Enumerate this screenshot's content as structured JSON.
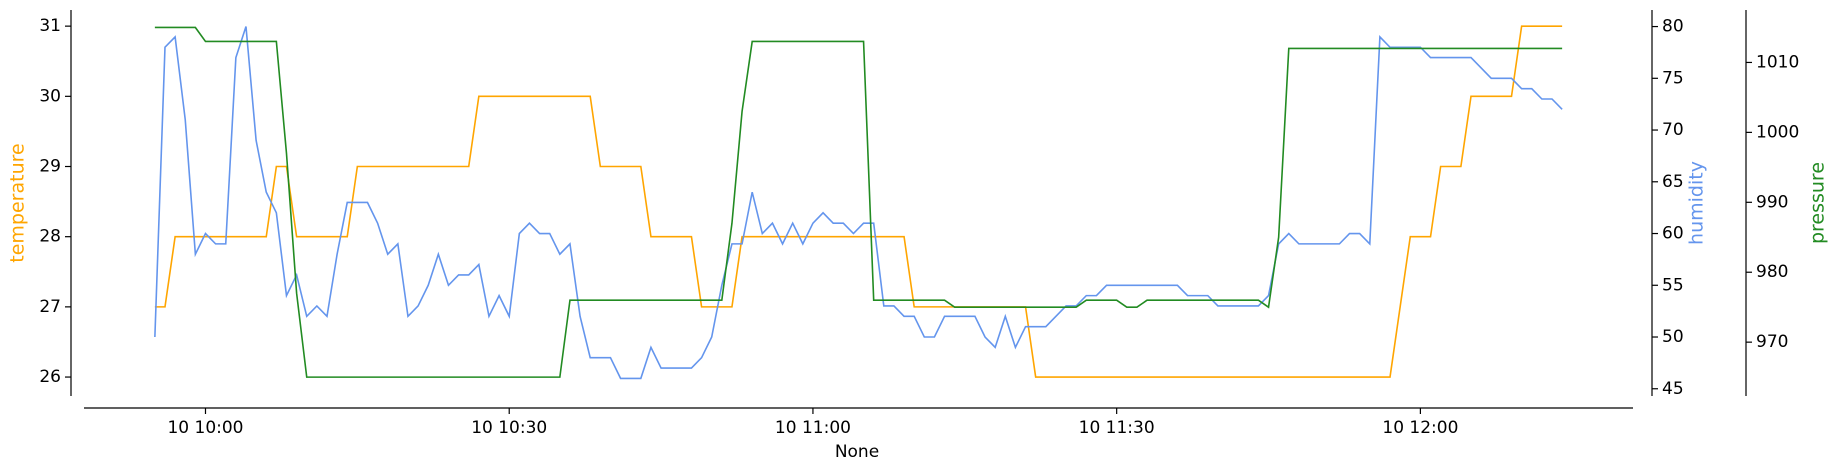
{
  "chart_data": {
    "type": "line",
    "x": [
      "10 09:55",
      "10 09:56",
      "10 09:57",
      "10 09:58",
      "10 09:59",
      "10 10:00",
      "10 10:01",
      "10 10:02",
      "10 10:03",
      "10 10:04",
      "10 10:05",
      "10 10:06",
      "10 10:07",
      "10 10:08",
      "10 10:09",
      "10 10:10",
      "10 10:11",
      "10 10:12",
      "10 10:13",
      "10 10:14",
      "10 10:15",
      "10 10:16",
      "10 10:17",
      "10 10:18",
      "10 10:19",
      "10 10:20",
      "10 10:21",
      "10 10:22",
      "10 10:23",
      "10 10:24",
      "10 10:25",
      "10 10:26",
      "10 10:27",
      "10 10:28",
      "10 10:29",
      "10 10:30",
      "10 10:31",
      "10 10:32",
      "10 10:33",
      "10 10:34",
      "10 10:35",
      "10 10:36",
      "10 10:37",
      "10 10:38",
      "10 10:39",
      "10 10:40",
      "10 10:41",
      "10 10:42",
      "10 10:43",
      "10 10:44",
      "10 10:45",
      "10 10:46",
      "10 10:47",
      "10 10:48",
      "10 10:49",
      "10 10:50",
      "10 10:51",
      "10 10:52",
      "10 10:53",
      "10 10:54",
      "10 10:55",
      "10 10:56",
      "10 10:57",
      "10 10:58",
      "10 10:59",
      "10 11:00",
      "10 11:01",
      "10 11:02",
      "10 11:03",
      "10 11:04",
      "10 11:05",
      "10 11:06",
      "10 11:07",
      "10 11:08",
      "10 11:09",
      "10 11:10",
      "10 11:11",
      "10 11:12",
      "10 11:13",
      "10 11:14",
      "10 11:15",
      "10 11:16",
      "10 11:17",
      "10 11:18",
      "10 11:19",
      "10 11:20",
      "10 11:21",
      "10 11:22",
      "10 11:23",
      "10 11:24",
      "10 11:25",
      "10 11:26",
      "10 11:27",
      "10 11:28",
      "10 11:29",
      "10 11:30",
      "10 11:31",
      "10 11:32",
      "10 11:33",
      "10 11:34",
      "10 11:35",
      "10 11:36",
      "10 11:37",
      "10 11:38",
      "10 11:39",
      "10 11:40",
      "10 11:41",
      "10 11:42",
      "10 11:43",
      "10 11:44",
      "10 11:45",
      "10 11:46",
      "10 11:47",
      "10 11:48",
      "10 11:49",
      "10 11:50",
      "10 11:51",
      "10 11:52",
      "10 11:53",
      "10 11:54",
      "10 11:55",
      "10 11:56",
      "10 11:57",
      "10 11:58",
      "10 11:59",
      "10 12:00",
      "10 12:01",
      "10 12:02",
      "10 12:03",
      "10 12:04",
      "10 12:05",
      "10 12:06",
      "10 12:07",
      "10 12:08",
      "10 12:09",
      "10 12:10",
      "10 12:11",
      "10 12:12",
      "10 12:13",
      "10 12:14"
    ],
    "series": [
      {
        "name": "temperature",
        "color": "#ffa500",
        "axis": "y",
        "values": [
          27,
          27,
          28,
          28,
          28,
          28,
          28,
          28,
          28,
          28,
          28,
          28,
          29,
          29,
          28,
          28,
          28,
          28,
          28,
          28,
          29,
          29,
          29,
          29,
          29,
          29,
          29,
          29,
          29,
          29,
          29,
          29,
          30,
          30,
          30,
          30,
          30,
          30,
          30,
          30,
          30,
          30,
          30,
          30,
          29,
          29,
          29,
          29,
          29,
          28,
          28,
          28,
          28,
          28,
          27,
          27,
          27,
          27,
          28,
          28,
          28,
          28,
          28,
          28,
          28,
          28,
          28,
          28,
          28,
          28,
          28,
          28,
          28,
          28,
          28,
          27,
          27,
          27,
          27,
          27,
          27,
          27,
          27,
          27,
          27,
          27,
          27,
          26,
          26,
          26,
          26,
          26,
          26,
          26,
          26,
          26,
          26,
          26,
          26,
          26,
          26,
          26,
          26,
          26,
          26,
          26,
          26,
          26,
          26,
          26,
          26,
          26,
          26,
          26,
          26,
          26,
          26,
          26,
          26,
          26,
          26,
          26,
          26,
          27,
          28,
          28,
          28,
          29,
          29,
          29,
          30,
          30,
          30,
          30,
          30,
          31,
          31,
          31,
          31,
          31
        ]
      },
      {
        "name": "humidity",
        "color": "#6495ed",
        "axis": "y2",
        "values": [
          50,
          78,
          79,
          71,
          58,
          60,
          59,
          59,
          77,
          80,
          69,
          64,
          62,
          54,
          56,
          52,
          53,
          52,
          58,
          63,
          63,
          63,
          61,
          58,
          59,
          52,
          53,
          55,
          58,
          55,
          56,
          56,
          57,
          52,
          54,
          52,
          60,
          61,
          60,
          60,
          58,
          59,
          52,
          48,
          48,
          48,
          46,
          46,
          46,
          49,
          47,
          47,
          47,
          47,
          48,
          50,
          55,
          59,
          59,
          64,
          60,
          61,
          59,
          61,
          59,
          61,
          62,
          61,
          61,
          60,
          61,
          61,
          53,
          53,
          52,
          52,
          50,
          50,
          52,
          52,
          52,
          52,
          50,
          49,
          52,
          49,
          51,
          51,
          51,
          52,
          53,
          53,
          54,
          54,
          55,
          55,
          55,
          55,
          55,
          55,
          55,
          55,
          54,
          54,
          54,
          53,
          53,
          53,
          53,
          53,
          54,
          59,
          60,
          59,
          59,
          59,
          59,
          59,
          60,
          60,
          59,
          79,
          78,
          78,
          78,
          78,
          77,
          77,
          77,
          77,
          77,
          76,
          75,
          75,
          75,
          74,
          74,
          73,
          73,
          72
        ]
      },
      {
        "name": "pressure",
        "color": "#228b22",
        "axis": "y3",
        "values": [
          1015,
          1015,
          1015,
          1015,
          1015,
          1013,
          1013,
          1013,
          1013,
          1013,
          1013,
          1013,
          1013,
          997,
          977,
          965,
          965,
          965,
          965,
          965,
          965,
          965,
          965,
          965,
          965,
          965,
          965,
          965,
          965,
          965,
          965,
          965,
          965,
          965,
          965,
          965,
          965,
          965,
          965,
          965,
          965,
          976,
          976,
          976,
          976,
          976,
          976,
          976,
          976,
          976,
          976,
          976,
          976,
          976,
          976,
          976,
          976,
          987,
          1003,
          1013,
          1013,
          1013,
          1013,
          1013,
          1013,
          1013,
          1013,
          1013,
          1013,
          1013,
          1013,
          976,
          976,
          976,
          976,
          976,
          976,
          976,
          976,
          975,
          975,
          975,
          975,
          975,
          975,
          975,
          975,
          975,
          975,
          975,
          975,
          975,
          976,
          976,
          976,
          976,
          975,
          975,
          976,
          976,
          976,
          976,
          976,
          976,
          976,
          976,
          976,
          976,
          976,
          976,
          975,
          985,
          1012,
          1012,
          1012,
          1012,
          1012,
          1012,
          1012,
          1012,
          1012,
          1012,
          1012,
          1012,
          1012,
          1012,
          1012,
          1012,
          1012,
          1012,
          1012,
          1012,
          1012,
          1012,
          1012,
          1012,
          1012,
          1012,
          1012,
          1012
        ]
      }
    ],
    "xlabel": "None",
    "ylabel": "temperature",
    "y2label": "humidity",
    "y3label": "pressure",
    "xlim": [
      "10 09:48",
      "10 12:21"
    ],
    "xticks": [
      "10 10:00",
      "10 10:30",
      "10 11:00",
      "10 11:30",
      "10 12:00"
    ],
    "ylim": [
      25.73,
      31.23
    ],
    "yticks": [
      26,
      27,
      28,
      29,
      30,
      31
    ],
    "y2lim": [
      44.3,
      81.6
    ],
    "y2ticks": [
      45,
      50,
      55,
      60,
      65,
      70,
      75,
      80
    ],
    "y3lim": [
      962.3,
      1017.5
    ],
    "y3ticks": [
      970,
      980,
      990,
      1000,
      1010
    ]
  }
}
